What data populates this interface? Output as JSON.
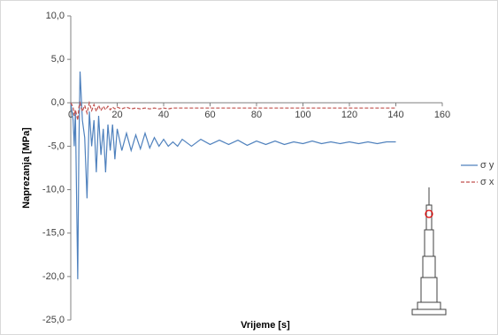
{
  "chart_data": {
    "type": "line",
    "xlabel": "Vrijeme [s]",
    "ylabel": "Naprezanja [MPa]",
    "x": [
      0,
      1,
      1.5,
      2,
      3,
      3.5,
      4,
      5,
      6,
      7,
      8,
      9,
      10,
      11,
      12,
      13,
      14,
      15,
      16,
      17,
      18,
      19,
      20,
      22,
      24,
      26,
      28,
      30,
      32,
      34,
      36,
      38,
      40,
      42,
      44,
      46,
      48,
      52,
      56,
      60,
      64,
      68,
      72,
      76,
      80,
      84,
      88,
      92,
      96,
      100,
      104,
      108,
      112,
      116,
      120,
      124,
      128,
      132,
      136,
      140
    ],
    "series": [
      {
        "name": "σ y",
        "color": "#4f81bd",
        "dash": false,
        "values": [
          0,
          -2,
          -5,
          -1,
          -20.3,
          -5,
          3.6,
          -2,
          -4,
          -11,
          -1,
          -5,
          -2,
          -8,
          -1.5,
          -6,
          -3,
          -8,
          -2.5,
          -5.5,
          -2.5,
          -6.5,
          -3,
          -5.5,
          -3.5,
          -5.5,
          -3.7,
          -5.3,
          -3.5,
          -5.2,
          -4,
          -5,
          -4.2,
          -5,
          -4.5,
          -5,
          -4.2,
          -5,
          -4.2,
          -4.8,
          -4.3,
          -4.8,
          -4.3,
          -4.9,
          -4.4,
          -4.8,
          -4.4,
          -4.8,
          -4.5,
          -4.7,
          -4.4,
          -4.7,
          -4.5,
          -4.7,
          -4.5,
          -4.7,
          -4.5,
          -4.7,
          -4.5,
          -4.5
        ]
      },
      {
        "name": "σ x",
        "color": "#c0504d",
        "dash": true,
        "values": [
          0,
          -0.5,
          -1.5,
          -0.8,
          -2,
          -0.5,
          0,
          -1,
          -0.3,
          -1.2,
          0,
          -0.9,
          -0.2,
          -1,
          -0.3,
          -0.9,
          -0.4,
          -0.8,
          -0.4,
          -0.8,
          -0.5,
          -0.7,
          -0.5,
          -0.7,
          -0.5,
          -0.7,
          -0.6,
          -0.7,
          -0.6,
          -0.7,
          -0.6,
          -0.7,
          -0.6,
          -0.7,
          -0.6,
          -0.6,
          -0.6,
          -0.6,
          -0.6,
          -0.6,
          -0.6,
          -0.6,
          -0.6,
          -0.6,
          -0.6,
          -0.6,
          -0.6,
          -0.6,
          -0.6,
          -0.6,
          -0.6,
          -0.6,
          -0.6,
          -0.6,
          -0.6,
          -0.6,
          -0.6,
          -0.6,
          -0.6,
          -0.6
        ]
      }
    ],
    "xlim": [
      0,
      160
    ],
    "xticks": [
      0,
      20,
      40,
      60,
      80,
      100,
      120,
      140,
      160
    ],
    "ylim": [
      -25,
      10
    ],
    "yticks": [
      {
        "value": 10,
        "label": "10,0"
      },
      {
        "value": 5,
        "label": "5,0"
      },
      {
        "value": 0,
        "label": "0,0"
      },
      {
        "value": -5,
        "label": "-5,0"
      },
      {
        "value": -10,
        "label": "-10,0"
      },
      {
        "value": -15,
        "label": "-15,0"
      },
      {
        "value": -20,
        "label": "-20,0"
      },
      {
        "value": -25,
        "label": "-25,0"
      }
    ],
    "grid": false,
    "legend": "right"
  }
}
